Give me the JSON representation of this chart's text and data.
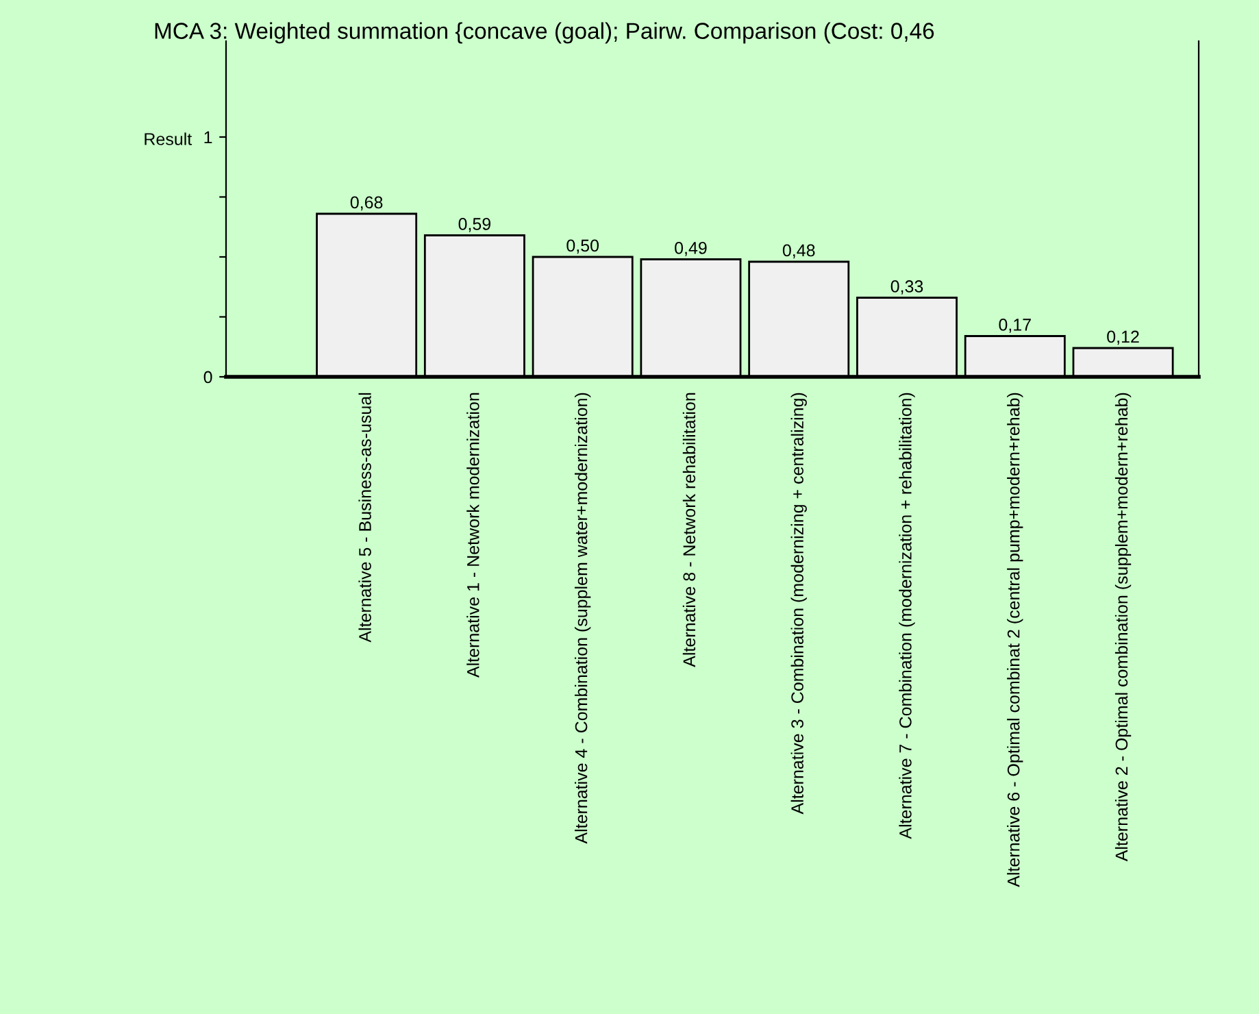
{
  "chart_data": {
    "type": "bar",
    "title": "MCA 3: Weighted summation {concave (goal); Pairw. Comparison (Cost: 0,46",
    "ylabel": "Result",
    "categories": [
      "Alternative 5 - Business-as-usual",
      "Alternative 1 - Network modernization",
      "Alternative 4 - Combination (supplem water+modernization)",
      "Alternative 8 - Network rehabilitation",
      "Alternative 3 - Combination (modernizing + centralizing)",
      "Alternative 7 - Combination (modernization + rehabilitation)",
      "Alternative 6 - Optimal combinat 2 (central pump+modern+rehab)",
      "Alternative 2 - Optimal combination (supplem+modern+rehab)"
    ],
    "values": [
      0.68,
      0.59,
      0.5,
      0.49,
      0.48,
      0.33,
      0.17,
      0.12
    ],
    "value_labels": [
      "0,68",
      "0,59",
      "0,50",
      "0,49",
      "0,48",
      "0,33",
      "0,17",
      "0,12"
    ],
    "color": "#f0f0f0",
    "ylim": [
      0,
      1.4
    ],
    "yticks": [
      0,
      {
        "value": 0.25,
        "label": null
      },
      {
        "value": 0.5,
        "label": null
      },
      {
        "value": 0.75,
        "label": null
      },
      1
    ],
    "grid": false,
    "legend": false
  }
}
